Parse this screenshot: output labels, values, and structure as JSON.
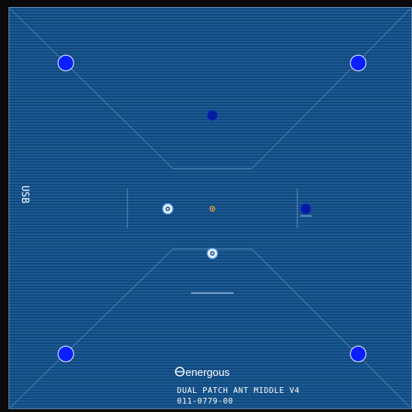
{
  "board": {
    "usb_label": "USB",
    "brand": {
      "logo_letter": "e",
      "name": "energous"
    },
    "title_line": "DUAL PATCH ANT MIDDLE V4",
    "part_number": "011-0779-00"
  },
  "colors": {
    "substrate": "#1a5a96",
    "stripe": "#0d3e6e",
    "frame": "#0a0a0a",
    "silkscreen": "#ffffff",
    "via_fill": "#0a1fff",
    "via_ring": "#dfe7ff",
    "dark_via": "#061a9e",
    "feed_pad": "#ff9b30"
  }
}
